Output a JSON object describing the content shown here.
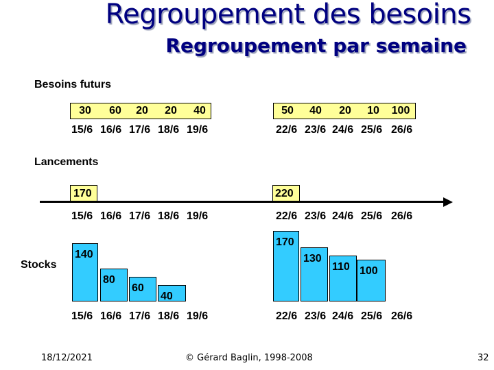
{
  "title": "Regroupement des besoins",
  "subtitle": "Regroupement par semaine",
  "sections": {
    "besoins": "Besoins futurs",
    "lancements": "Lancements",
    "stocks": "Stocks"
  },
  "besoins_values": {
    "week1": [
      "30",
      "60",
      "20",
      "20",
      "40"
    ],
    "week2": [
      "50",
      "40",
      "20",
      "10",
      "100"
    ]
  },
  "dates": {
    "week1": [
      "15/6",
      "16/6",
      "17/6",
      "18/6",
      "19/6"
    ],
    "week2": [
      "22/6",
      "23/6",
      "24/6",
      "25/6",
      "26/6"
    ]
  },
  "lancements_values": [
    "170",
    "220"
  ],
  "stocks_values": {
    "week1": [
      140,
      80,
      60,
      40
    ],
    "week2": [
      170,
      130,
      110,
      100
    ]
  },
  "footer": {
    "date": "18/12/2021",
    "copyright": "© Gérard Baglin, 1998-2008",
    "page": "32"
  },
  "colors": {
    "title": "#000080",
    "cell_fill": "#ffff99",
    "bar_fill": "#33ccff"
  }
}
